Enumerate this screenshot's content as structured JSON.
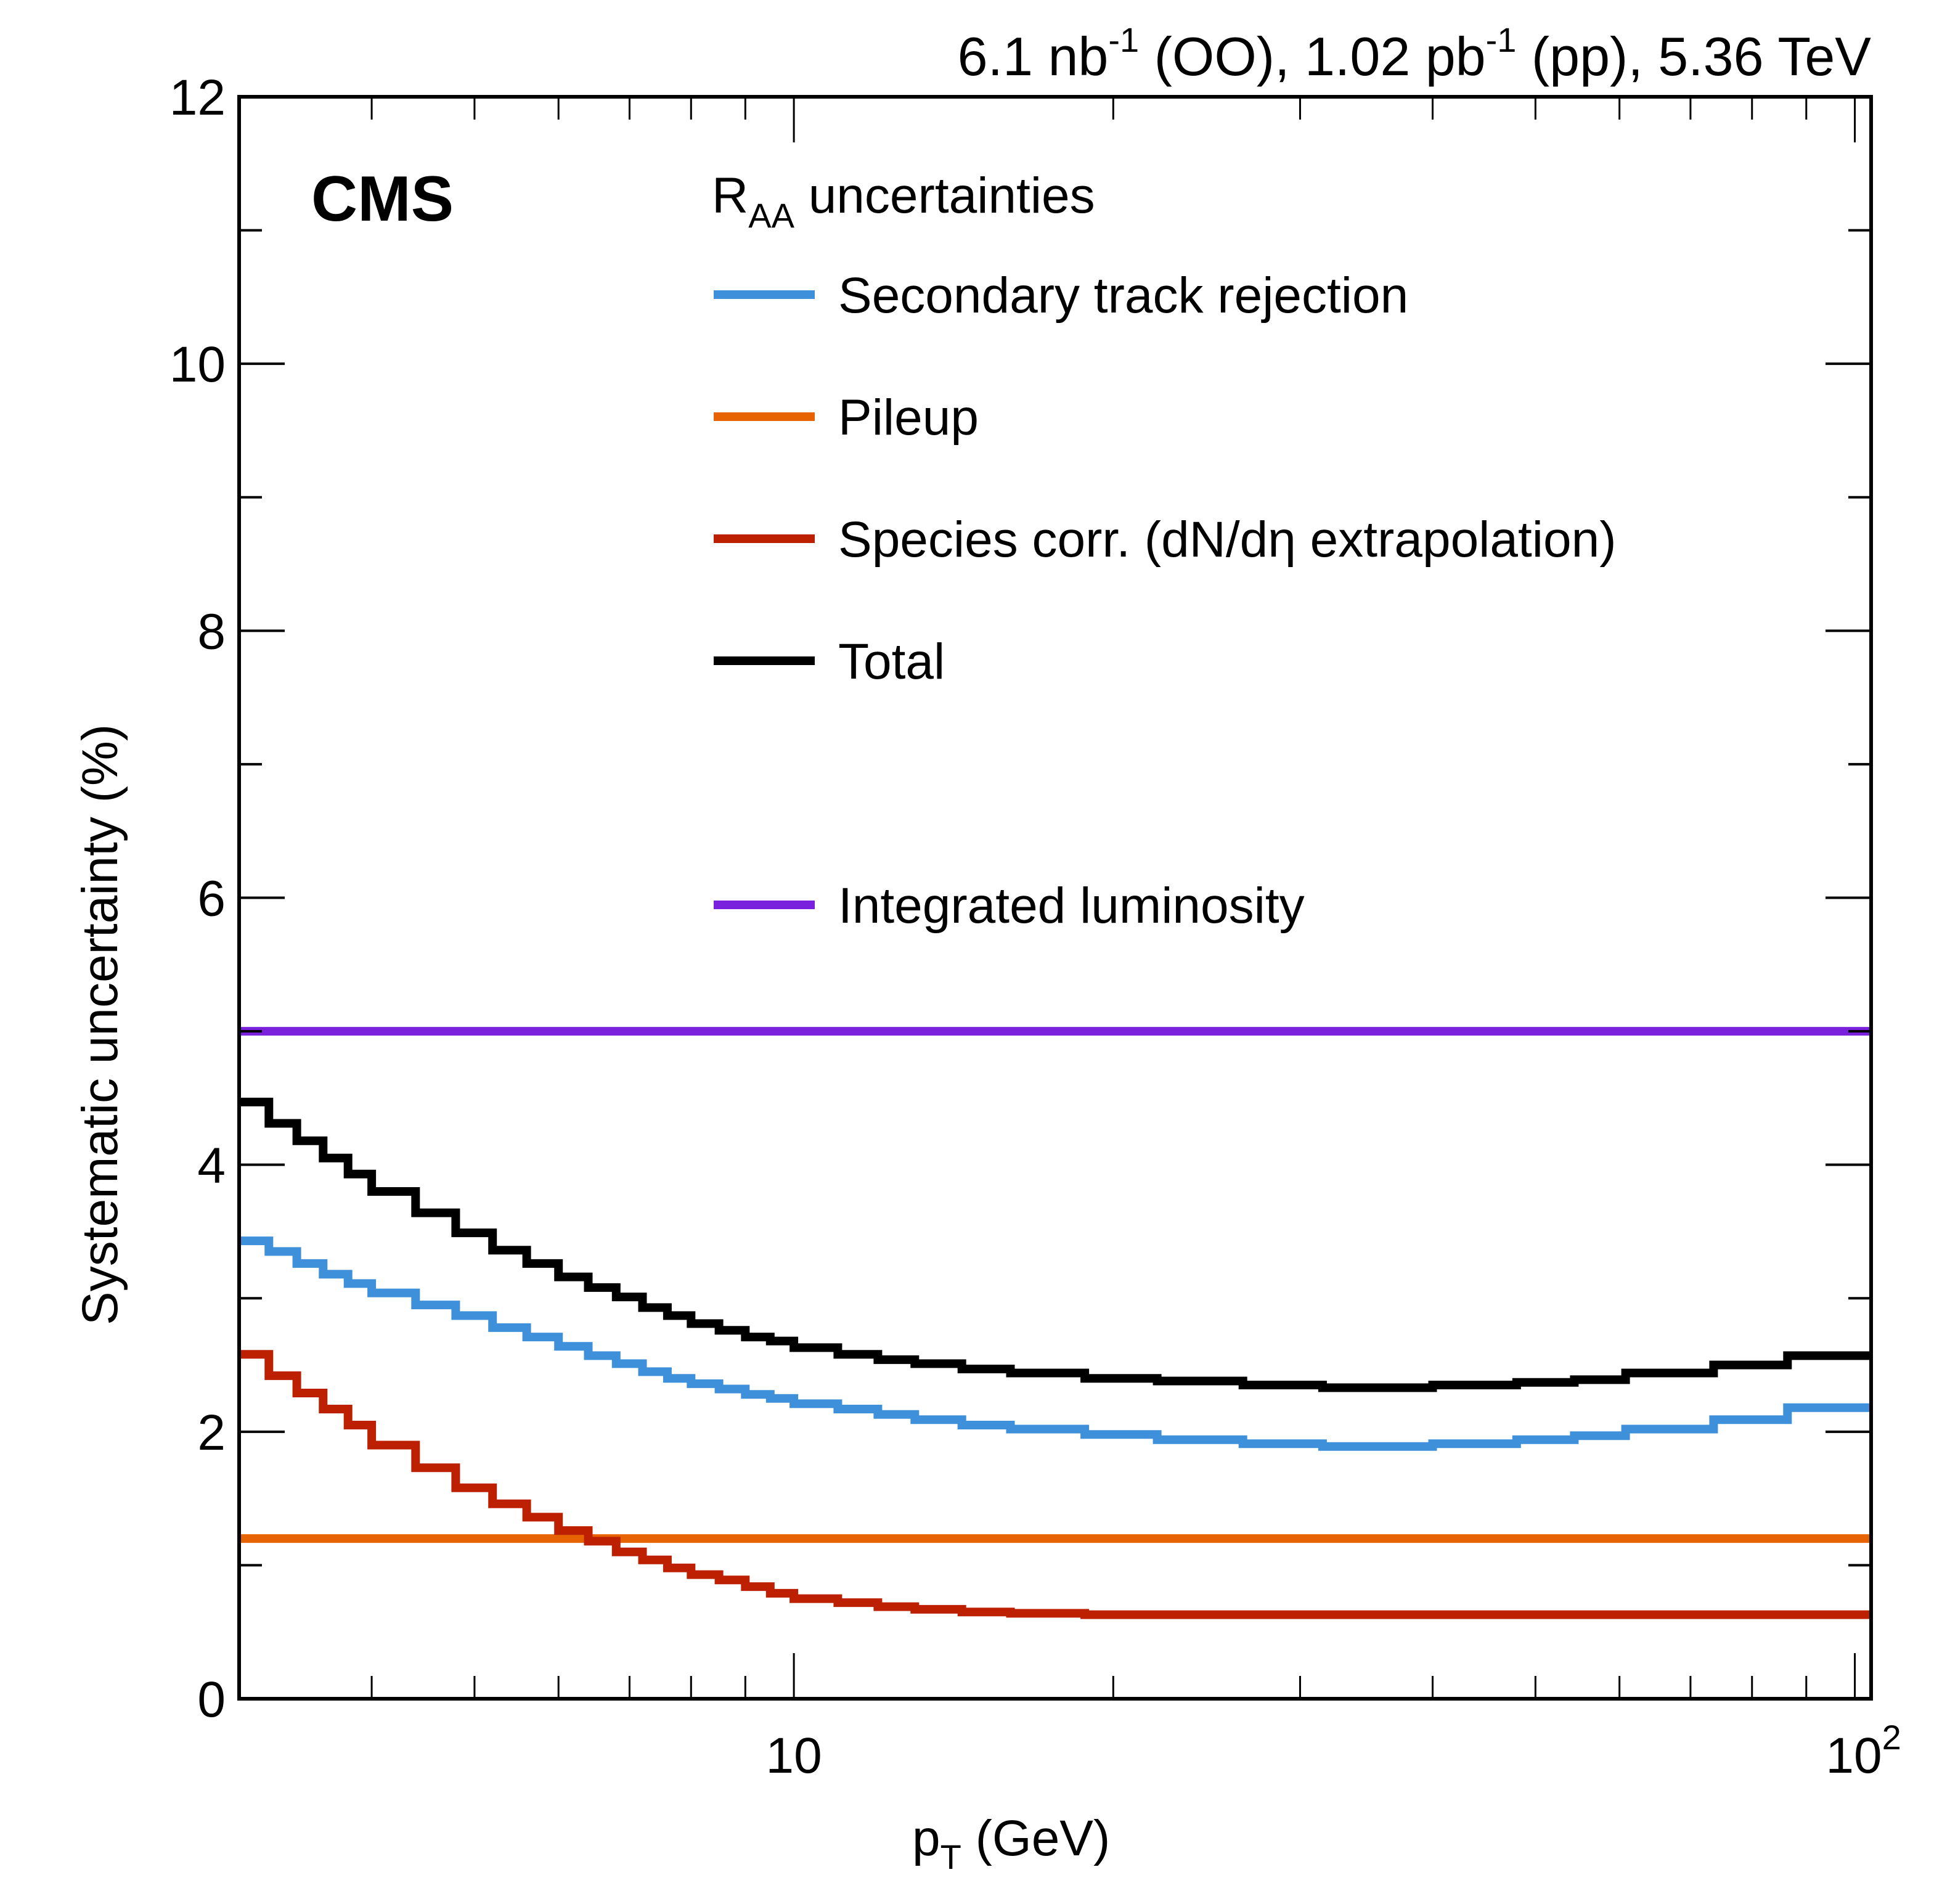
{
  "chart_data": {
    "type": "line",
    "style": "step",
    "title": "",
    "experiment_label": "CMS",
    "lumi_text": {
      "part1": "6.1 nb",
      "sup1": "-1",
      "part2": " (OO), 1.02 pb",
      "sup2": "-1",
      "part3": " (pp), 5.36 TeV"
    },
    "xlabel": {
      "main": "p",
      "sub": "T",
      "rest": " (GeV)"
    },
    "ylabel": "Systematic uncertainty (%)",
    "xscale": "log",
    "xlim": [
      3.0,
      103.6
    ],
    "ylim": [
      0,
      12
    ],
    "x_tick_labels": [
      {
        "value": 10,
        "base": "10",
        "exp": ""
      },
      {
        "value": 100,
        "base": "10",
        "exp": "2"
      }
    ],
    "y_ticks": [
      0,
      2,
      4,
      6,
      8,
      10,
      12
    ],
    "legend": {
      "header_main": "R",
      "header_sub": "AA",
      "header_rest": " uncertainties",
      "placement": "top-right"
    },
    "bin_edges": [
      3.0,
      3.2,
      3.4,
      3.6,
      3.8,
      4.0,
      4.4,
      4.8,
      5.2,
      5.6,
      6.0,
      6.4,
      6.8,
      7.2,
      7.6,
      8.0,
      8.5,
      9.0,
      9.5,
      10,
      11,
      12,
      13,
      14.4,
      16,
      18.8,
      22,
      26.5,
      31.5,
      40,
      48,
      54.4,
      60.8,
      73.6,
      86.4,
      103.6
    ],
    "series": [
      {
        "name": "Secondary track rejection",
        "color": "#3f90da",
        "values": [
          3.43,
          3.35,
          3.26,
          3.18,
          3.11,
          3.04,
          2.95,
          2.87,
          2.78,
          2.71,
          2.64,
          2.57,
          2.51,
          2.45,
          2.4,
          2.36,
          2.32,
          2.28,
          2.25,
          2.21,
          2.17,
          2.13,
          2.09,
          2.05,
          2.02,
          1.98,
          1.94,
          1.91,
          1.89,
          1.91,
          1.94,
          1.97,
          2.02,
          2.09,
          2.18
        ]
      },
      {
        "name": "Pileup",
        "color": "#e76300",
        "values": [
          1.2,
          1.2,
          1.2,
          1.2,
          1.2,
          1.2,
          1.2,
          1.2,
          1.2,
          1.2,
          1.2,
          1.2,
          1.2,
          1.2,
          1.2,
          1.2,
          1.2,
          1.2,
          1.2,
          1.2,
          1.2,
          1.2,
          1.2,
          1.2,
          1.2,
          1.2,
          1.2,
          1.2,
          1.2,
          1.2,
          1.2,
          1.2,
          1.2,
          1.2,
          1.2
        ]
      },
      {
        "name": "Species corr. (dN/dη extrapolation)",
        "color": "#bd1f01",
        "values": [
          2.58,
          2.42,
          2.29,
          2.17,
          2.05,
          1.9,
          1.73,
          1.58,
          1.46,
          1.36,
          1.26,
          1.18,
          1.1,
          1.04,
          0.98,
          0.93,
          0.89,
          0.84,
          0.79,
          0.75,
          0.72,
          0.69,
          0.67,
          0.65,
          0.64,
          0.63,
          0.63,
          0.63,
          0.63,
          0.63,
          0.63,
          0.63,
          0.63,
          0.63,
          0.63
        ]
      },
      {
        "name": "Total",
        "color": "#000000",
        "values": [
          4.47,
          4.31,
          4.18,
          4.05,
          3.93,
          3.8,
          3.64,
          3.49,
          3.36,
          3.26,
          3.16,
          3.08,
          3.01,
          2.93,
          2.87,
          2.81,
          2.76,
          2.71,
          2.68,
          2.63,
          2.58,
          2.54,
          2.51,
          2.47,
          2.44,
          2.4,
          2.38,
          2.35,
          2.33,
          2.35,
          2.37,
          2.39,
          2.44,
          2.5,
          2.57
        ]
      },
      {
        "name": "Integrated luminosity",
        "color": "#7a21dd",
        "values": [
          5.0,
          5.0,
          5.0,
          5.0,
          5.0,
          5.0,
          5.0,
          5.0,
          5.0,
          5.0,
          5.0,
          5.0,
          5.0,
          5.0,
          5.0,
          5.0,
          5.0,
          5.0,
          5.0,
          5.0,
          5.0,
          5.0,
          5.0,
          5.0,
          5.0,
          5.0,
          5.0,
          5.0,
          5.0,
          5.0,
          5.0,
          5.0,
          5.0,
          5.0,
          5.0
        ]
      }
    ]
  }
}
